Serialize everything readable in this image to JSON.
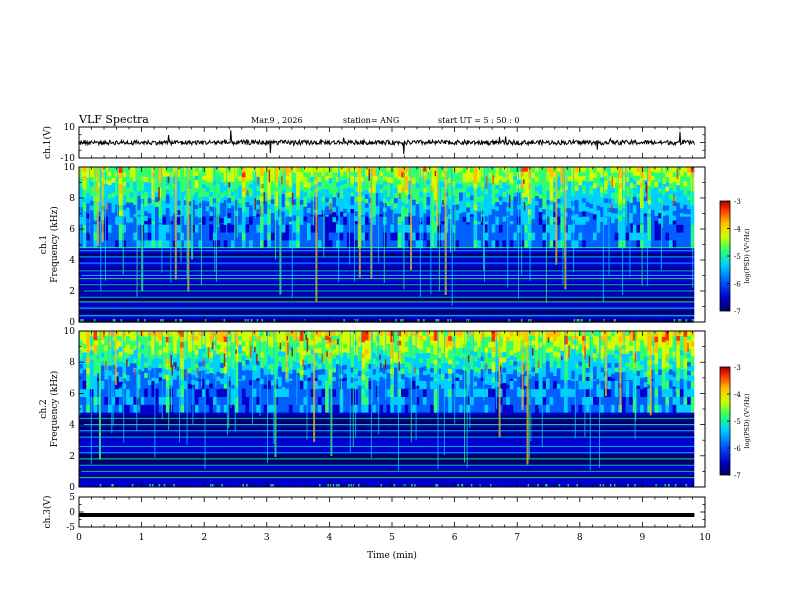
{
  "header": {
    "title": "VLF Spectra",
    "date": "Mar.9  , 2026",
    "station": "station= ANG",
    "start": "start  UT =   5  : 50 : 0"
  },
  "chart_data": [
    {
      "type": "line",
      "name": "ch1-waveform",
      "ylabel": "ch.1(V)",
      "ylim": [
        -10,
        10
      ],
      "yticks": [
        "10",
        "-10"
      ],
      "description_values": {
        "baseline": 0,
        "noise_amplitude": 1.5
      }
    },
    {
      "type": "heatmap",
      "name": "ch1-spectrogram",
      "ylabel_top": "ch.1",
      "ylabel": "Frequency  (kHz)",
      "ylim": [
        0,
        10
      ],
      "yticks": [
        "0",
        "2",
        "4",
        "6",
        "8",
        "10"
      ],
      "colorbar": {
        "label": "log(PSD) (V²/Hz)",
        "ticks": [
          "-3",
          "-4",
          "-5",
          "-6",
          "-7"
        ],
        "range": [
          -7,
          -3
        ]
      },
      "lines_khz": [
        0.4,
        0.9,
        1.3,
        1.6,
        2.0,
        2.4,
        2.8,
        3.0,
        3.3,
        3.8,
        4.2,
        4.6,
        4.8
      ]
    },
    {
      "type": "heatmap",
      "name": "ch2-spectrogram",
      "ylabel_top": "ch.2",
      "ylabel": "Frequency  (kHz)",
      "ylim": [
        0,
        10
      ],
      "yticks": [
        "0",
        "2",
        "4",
        "6",
        "8",
        "10"
      ],
      "colorbar": {
        "label": "log(PSD) (V²/Hz)",
        "ticks": [
          "-3",
          "-4",
          "-5",
          "-6",
          "-7"
        ],
        "range": [
          -7,
          -3
        ]
      },
      "lines_khz": [
        0.6,
        1.0,
        1.4,
        1.8,
        2.2,
        2.6,
        3.2,
        3.6,
        4.0,
        4.4
      ]
    },
    {
      "type": "line",
      "name": "ch3-waveform",
      "ylabel": "ch.3(V)",
      "ylim": [
        -5,
        5
      ],
      "yticks": [
        "5",
        "0",
        "-5"
      ],
      "values": [
        -1,
        -1
      ]
    }
  ],
  "xaxis": {
    "label": "Time  (min)",
    "range": [
      0,
      10
    ],
    "ticks": [
      "0",
      "1",
      "2",
      "3",
      "4",
      "5",
      "6",
      "7",
      "8",
      "9",
      "10"
    ],
    "data_end_min": 9.83
  },
  "colors": {
    "c0": "#000060",
    "c1": "#0000cc",
    "c2": "#0060ff",
    "c3": "#00d0ff",
    "c4": "#30ff70",
    "c5": "#d0ff00",
    "c6": "#ffc000",
    "c7": "#ff3000",
    "c8": "#a00000"
  }
}
